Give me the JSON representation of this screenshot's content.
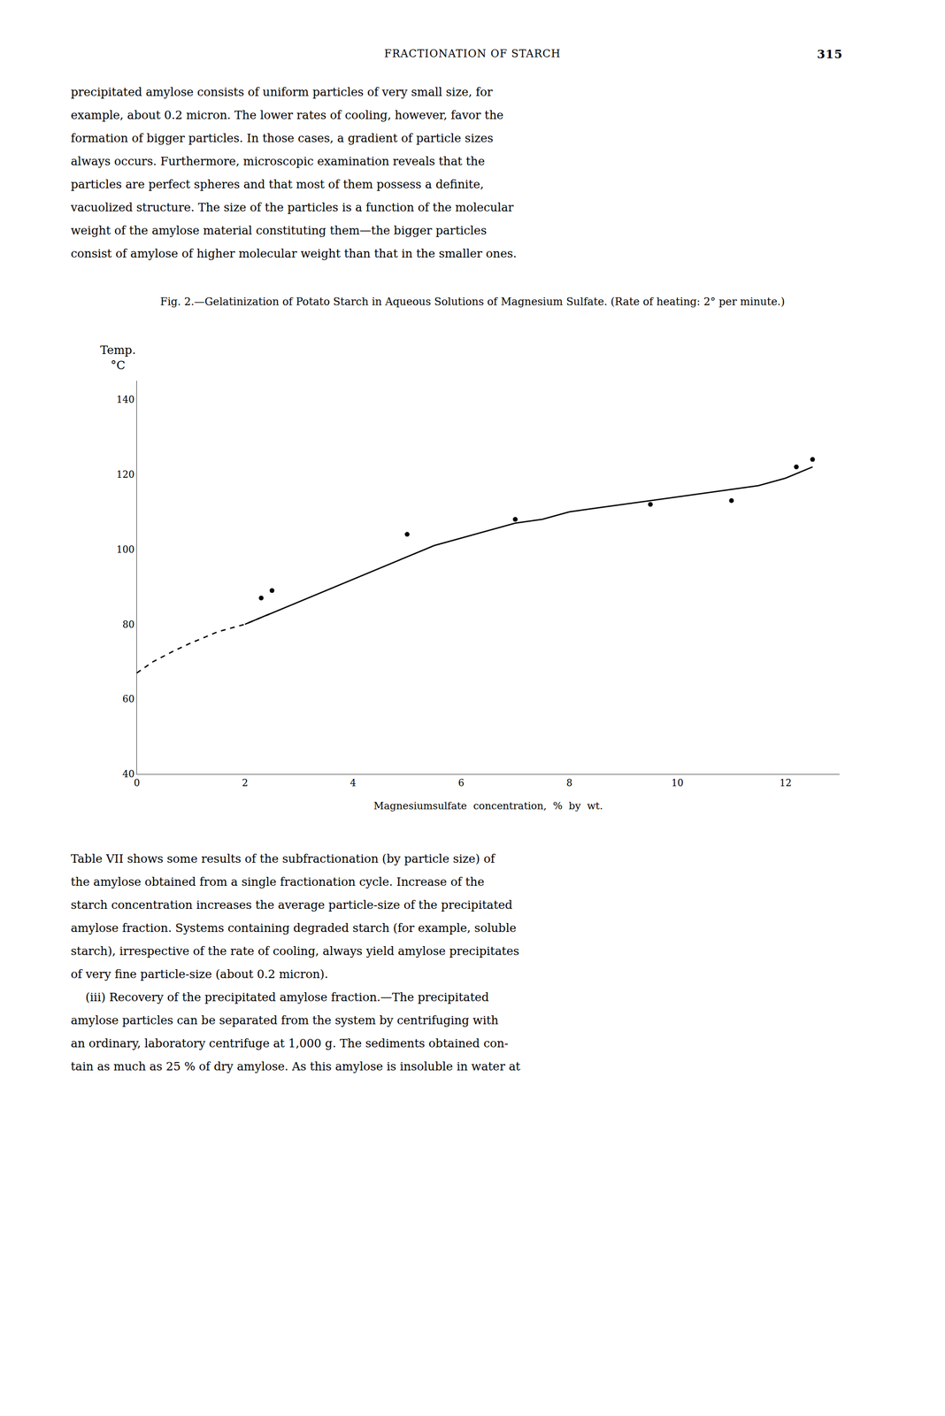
{
  "header": "FRACTIONATION OF STARCH",
  "page_number": "315",
  "text_before": [
    "precipitated amylose consists of uniform particles of very small size, for",
    "example, about 0.2 micron. The lower rates of cooling, however, favor the",
    "formation of bigger particles. In those cases, a gradient of particle sizes",
    "always occurs. Furthermore, microscopic examination reveals that the",
    "particles are perfect spheres and that most of them possess a definite,",
    "vacuolized structure. The size of the particles is a function of the molecular",
    "weight of the amylose material constituting them—the bigger particles",
    "consist of amylose of higher molecular weight than that in the smaller ones."
  ],
  "chart_data": {
    "type": "line",
    "title": "Fig. 2.—Gelatinization of Potato Starch in Aqueous Solutions of Magnesium Sulfate. (Rate of heating: 2° per minute.)",
    "x_label": "Magnesiumsulfate  concentration,  %  by  wt.",
    "y_label": [
      "Temp.",
      "°C"
    ],
    "series": [
      {
        "type": "line",
        "line_style": "dashed",
        "color": "#000000",
        "x": [
          0.0,
          0.3,
          0.7,
          1.0,
          1.5,
          2.0,
          2.5
        ],
        "values": [
          67,
          70,
          73,
          75,
          78,
          80,
          83
        ]
      },
      {
        "type": "line",
        "line_style": "solid",
        "color": "#000000",
        "x": [
          2.0,
          2.5,
          3.0,
          3.5,
          4.0,
          4.5,
          5.0,
          5.5,
          6.0,
          6.5,
          7.0,
          7.5,
          8.0,
          8.5,
          9.0,
          9.5,
          10.0,
          10.5,
          11.0,
          11.5,
          12.0,
          12.5
        ],
        "values": [
          80,
          83,
          86,
          89,
          92,
          95,
          98,
          101,
          103,
          105,
          107,
          108,
          110,
          111,
          112,
          113,
          114,
          115,
          116,
          117,
          119,
          122
        ]
      },
      {
        "type": "scatter",
        "marker": "circle",
        "color": "#000000",
        "x": [
          2.3,
          2.5,
          5.0,
          7.0,
          9.5,
          11.0,
          12.2,
          12.5
        ],
        "values": [
          87,
          89,
          104,
          108,
          112,
          113,
          122,
          124
        ]
      }
    ],
    "xlim": [
      0,
      13
    ],
    "ylim": [
      40,
      145
    ],
    "xticks": [
      0,
      2,
      4,
      6,
      8,
      10,
      12
    ],
    "yticks": [
      40,
      60,
      80,
      100,
      120,
      140
    ],
    "grid": false
  },
  "text_after": [
    "Table VII shows some results of the subfractionation (by particle size) of",
    "the amylose obtained from a single fractionation cycle. Increase of the",
    "starch concentration increases the average particle-size of the precipitated",
    "amylose fraction. Systems containing degraded starch (for example, soluble",
    "starch), irrespective of the rate of cooling, always yield amylose precipitates",
    "of very fine particle-size (about 0.2 micron).",
    "    (iii) Recovery of the precipitated amylose fraction.—The precipitated",
    "amylose particles can be separated from the system by centrifuging with",
    "an ordinary, laboratory centrifuge at 1,000 g. The sediments obtained con-",
    "tain as much as 25 % of dry amylose. As this amylose is insoluble in water at"
  ]
}
